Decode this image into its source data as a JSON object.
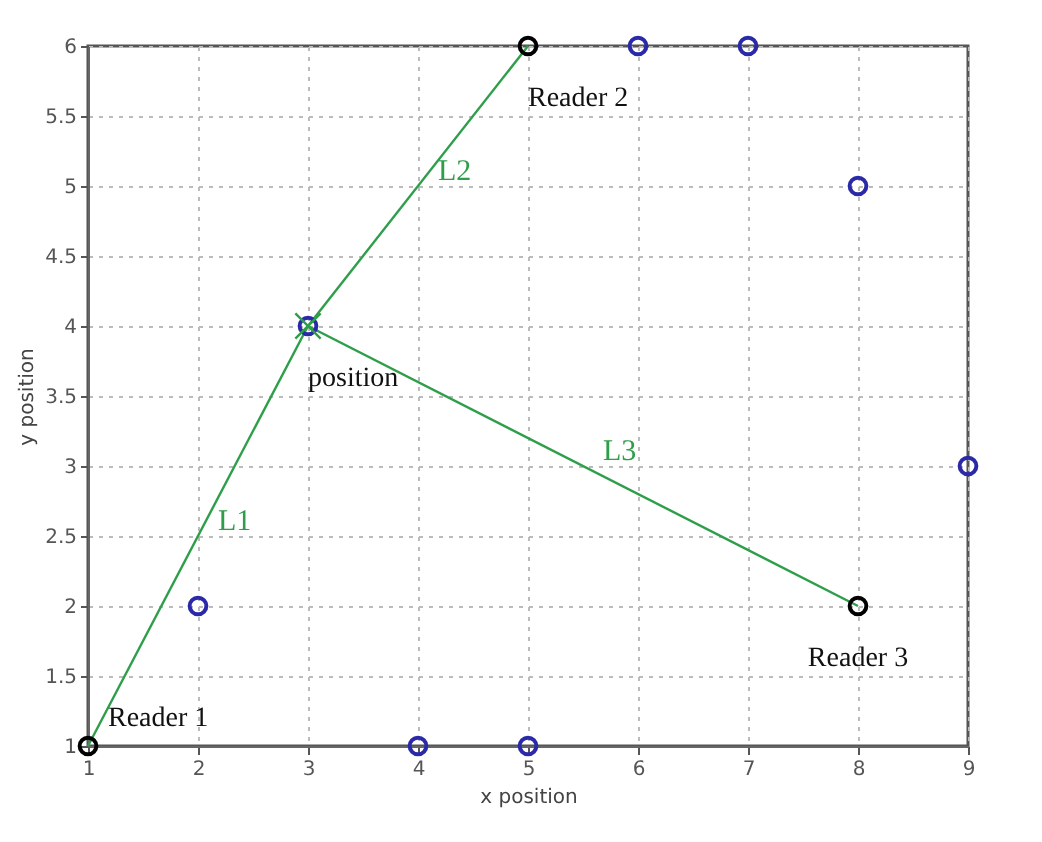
{
  "chart_data": {
    "type": "scatter",
    "xlabel": "x position",
    "ylabel": "y position",
    "xlim": [
      1,
      9
    ],
    "ylim": [
      1,
      6
    ],
    "xticks": [
      1,
      2,
      3,
      4,
      5,
      6,
      7,
      8,
      9
    ],
    "yticks": [
      1,
      1.5,
      2,
      2.5,
      3,
      3.5,
      4,
      4.5,
      5,
      5.5,
      6
    ],
    "grid": true,
    "legend": false,
    "series": [
      {
        "type": "line",
        "name": "L1",
        "color": "#2e9e4a",
        "x": [
          1,
          3
        ],
        "values": [
          1,
          4
        ]
      },
      {
        "type": "line",
        "name": "L2",
        "color": "#2e9e4a",
        "x": [
          5,
          3
        ],
        "values": [
          6,
          4
        ]
      },
      {
        "type": "line",
        "name": "L3",
        "color": "#2e9e4a",
        "x": [
          8,
          3
        ],
        "values": [
          2,
          4
        ]
      },
      {
        "type": "scatter",
        "marker": "circle",
        "color": "#2a2aa8",
        "x": [
          2,
          3,
          4,
          5,
          6,
          7,
          8,
          9
        ],
        "values": [
          2,
          4,
          1,
          1,
          6,
          6,
          5,
          3
        ]
      },
      {
        "type": "scatter",
        "marker": "circle",
        "color": "#000000",
        "x": [
          1,
          5,
          8
        ],
        "values": [
          1,
          6,
          2
        ]
      },
      {
        "type": "scatter",
        "marker": "cross",
        "color": "#2e9e4a",
        "x": [
          3
        ],
        "values": [
          4
        ]
      }
    ],
    "annotations": [
      {
        "text": "Reader 1",
        "x": 1,
        "y": 1
      },
      {
        "text": "Reader 2",
        "x": 5,
        "y": 6
      },
      {
        "text": "Reader 3",
        "x": 8,
        "y": 2
      },
      {
        "text": "position",
        "x": 3,
        "y": 4
      }
    ]
  }
}
